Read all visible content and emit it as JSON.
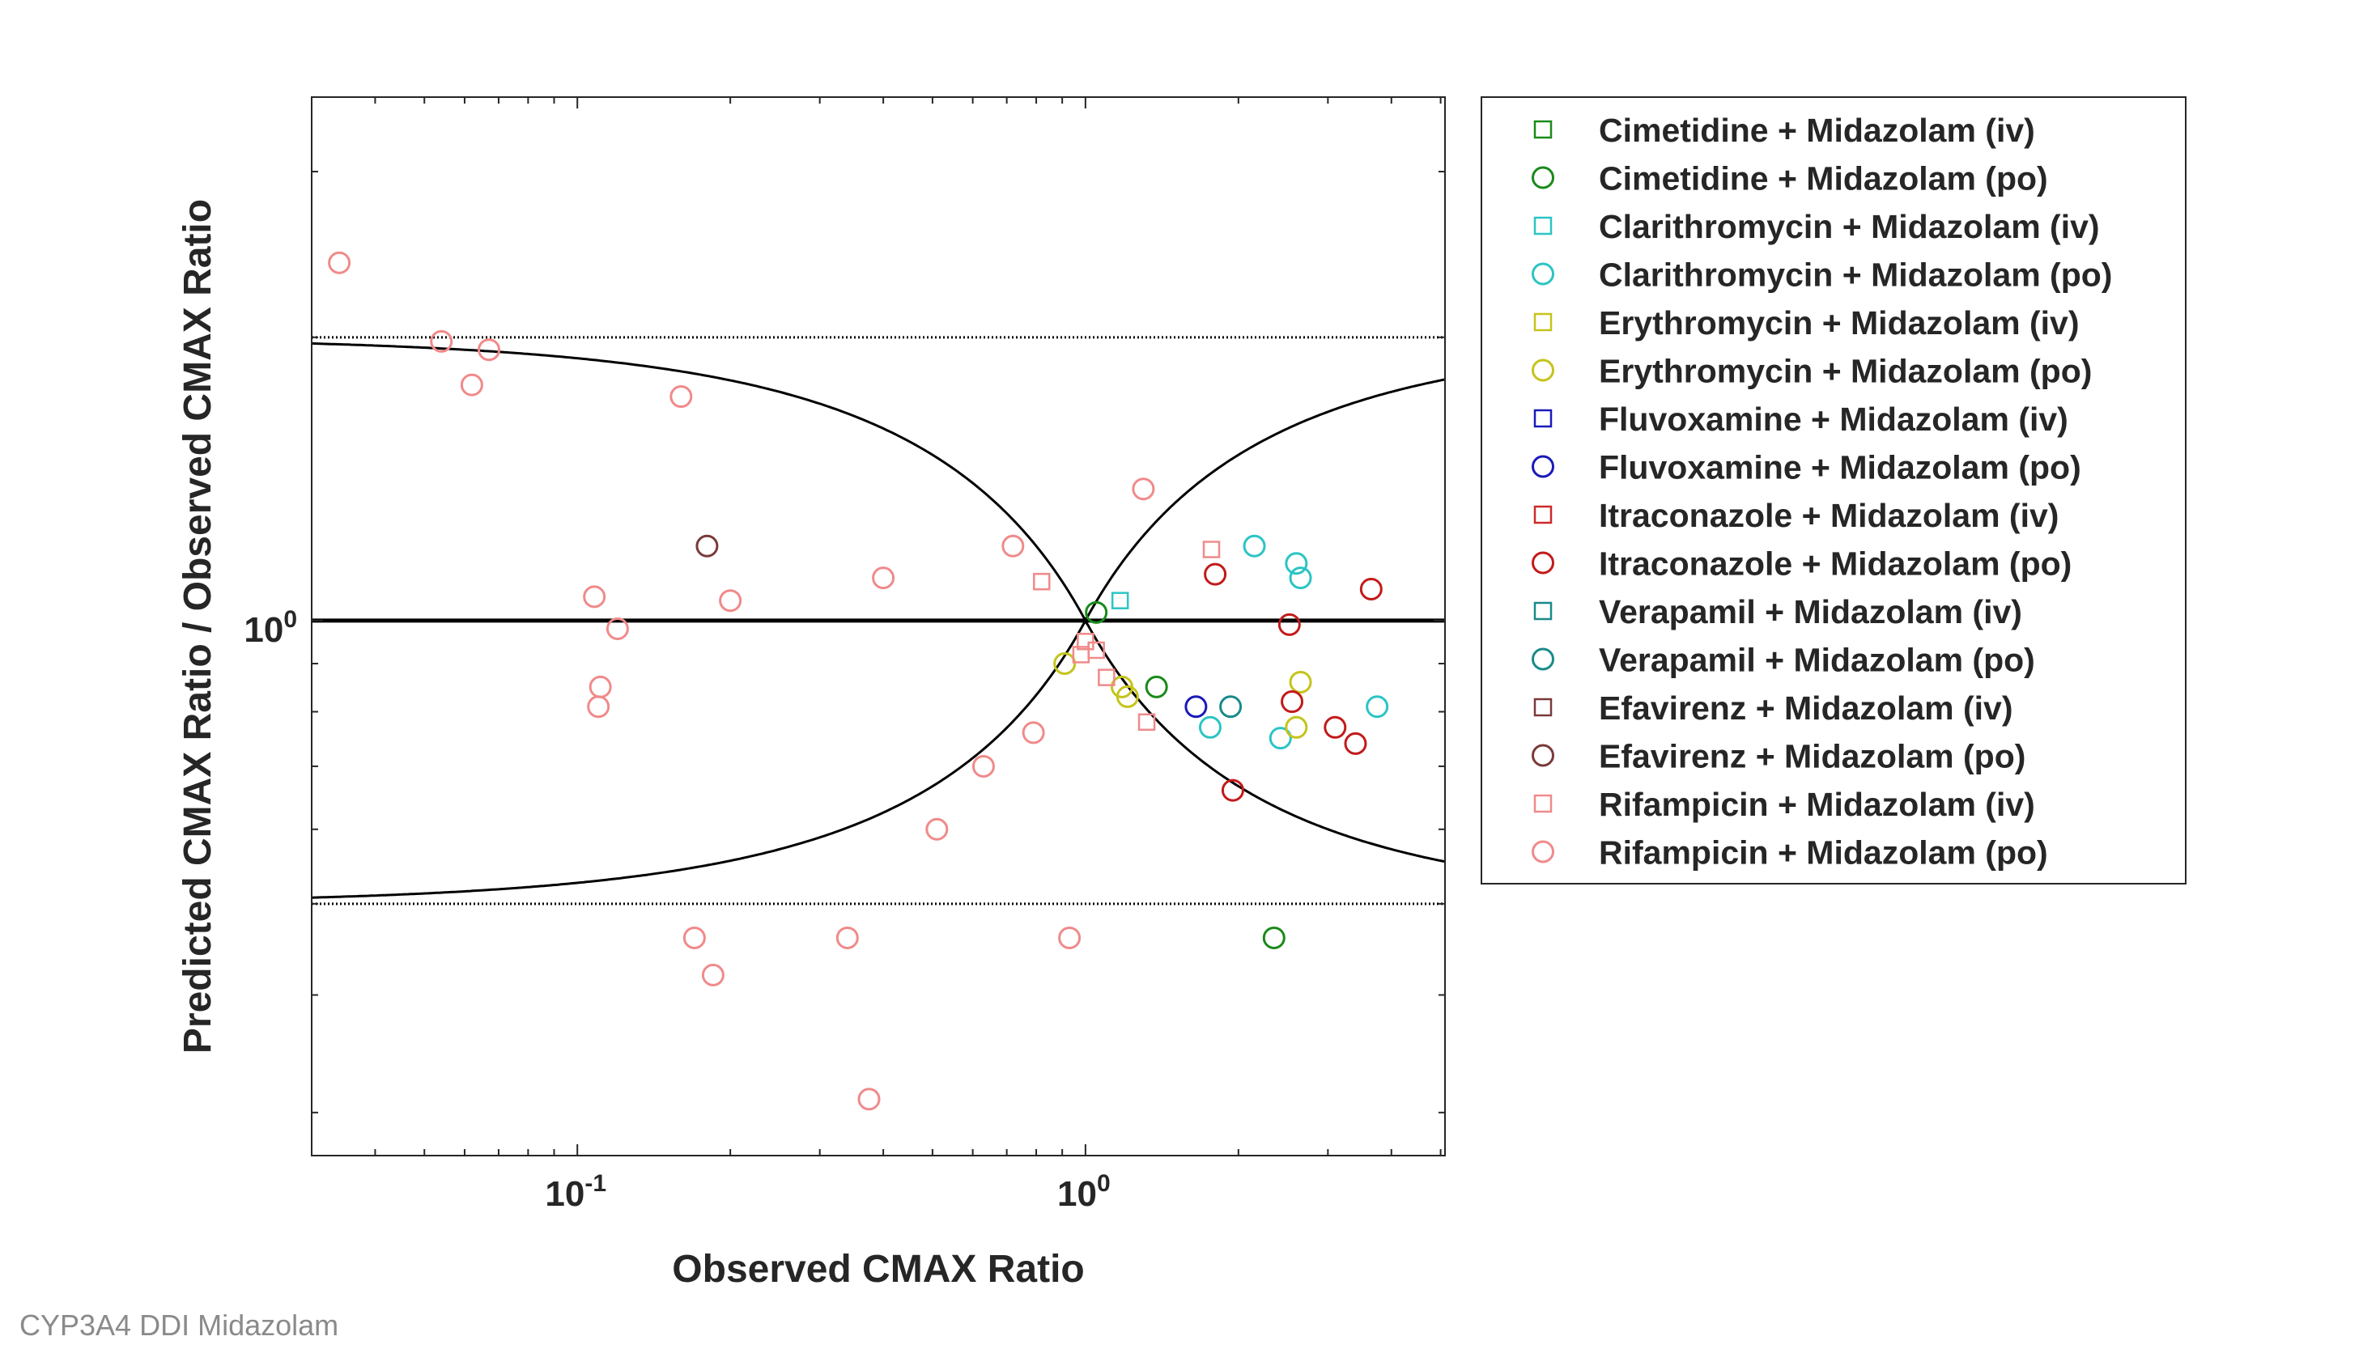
{
  "footer": {
    "caption": "CYP3A4 DDI Midazolam"
  },
  "chart_data": {
    "type": "scatter",
    "title": "",
    "xlabel": "Observed CMAX Ratio",
    "ylabel": "Predicted CMAX Ratio / Observed CMAX Ratio",
    "xscale": "log",
    "yscale": "log",
    "xlim": [
      0.03,
      5.1
    ],
    "ylim": [
      0.27,
      3.6
    ],
    "x_ticks": [
      {
        "value": 0.1,
        "base": "10",
        "exp": "-1"
      },
      {
        "value": 1,
        "base": "10",
        "exp": "0"
      }
    ],
    "y_ticks": [
      {
        "value": 1,
        "base": "10",
        "exp": "0"
      }
    ],
    "grid": false,
    "legend_position": "outside-right",
    "reference_lines": {
      "unity": 1,
      "dotted_limits": [
        0.5,
        2
      ],
      "guest_limit_curves": true
    },
    "series": [
      {
        "name": "Cimetidine + Midazolam (iv)",
        "marker": "square",
        "color": "#1a8a1a",
        "points": []
      },
      {
        "name": "Cimetidine + Midazolam (po)",
        "marker": "circle",
        "color": "#1a8a1a",
        "points": [
          [
            1.05,
            1.02
          ],
          [
            1.38,
            0.85
          ],
          [
            2.35,
            0.46
          ]
        ]
      },
      {
        "name": "Clarithromycin + Midazolam (iv)",
        "marker": "square",
        "color": "#2cc4c4",
        "points": [
          [
            1.17,
            1.05
          ]
        ]
      },
      {
        "name": "Clarithromycin + Midazolam (po)",
        "marker": "circle",
        "color": "#2cc4c4",
        "points": [
          [
            2.15,
            1.2
          ],
          [
            2.6,
            1.15
          ],
          [
            2.65,
            1.11
          ],
          [
            1.76,
            0.77
          ],
          [
            2.42,
            0.75
          ],
          [
            3.75,
            0.81
          ]
        ]
      },
      {
        "name": "Erythromycin + Midazolam (iv)",
        "marker": "square",
        "color": "#c4c41c",
        "points": []
      },
      {
        "name": "Erythromycin + Midazolam (po)",
        "marker": "circle",
        "color": "#c4c41c",
        "points": [
          [
            0.91,
            0.9
          ],
          [
            1.18,
            0.85
          ],
          [
            1.21,
            0.83
          ],
          [
            2.65,
            0.86
          ],
          [
            2.6,
            0.77
          ]
        ]
      },
      {
        "name": "Fluvoxamine + Midazolam (iv)",
        "marker": "square",
        "color": "#1a1ab8",
        "points": []
      },
      {
        "name": "Fluvoxamine + Midazolam (po)",
        "marker": "circle",
        "color": "#1a1ab8",
        "points": [
          [
            1.65,
            0.81
          ]
        ]
      },
      {
        "name": "Itraconazole + Midazolam (iv)",
        "marker": "square",
        "color": "#cc2a2a",
        "points": []
      },
      {
        "name": "Itraconazole + Midazolam (po)",
        "marker": "circle",
        "color": "#c21a1a",
        "points": [
          [
            1.8,
            1.12
          ],
          [
            3.65,
            1.08
          ],
          [
            2.52,
            0.99
          ],
          [
            2.55,
            0.82
          ],
          [
            3.1,
            0.77
          ],
          [
            3.4,
            0.74
          ],
          [
            1.95,
            0.66
          ]
        ]
      },
      {
        "name": "Verapamil + Midazolam (iv)",
        "marker": "square",
        "color": "#1a8a8a",
        "points": []
      },
      {
        "name": "Verapamil + Midazolam (po)",
        "marker": "circle",
        "color": "#1a8a8a",
        "points": [
          [
            1.93,
            0.81
          ]
        ]
      },
      {
        "name": "Efavirenz + Midazolam (iv)",
        "marker": "square",
        "color": "#7a3a3a",
        "points": []
      },
      {
        "name": "Efavirenz + Midazolam (po)",
        "marker": "circle",
        "color": "#7a3a3a",
        "points": [
          [
            0.18,
            1.2
          ]
        ]
      },
      {
        "name": "Rifampicin + Midazolam (iv)",
        "marker": "square",
        "color": "#f08a8a",
        "points": [
          [
            1.77,
            1.19
          ],
          [
            0.82,
            1.1
          ],
          [
            1.0,
            0.95
          ],
          [
            1.05,
            0.93
          ],
          [
            0.98,
            0.92
          ],
          [
            1.1,
            0.87
          ],
          [
            1.32,
            0.78
          ]
        ]
      },
      {
        "name": "Rifampicin + Midazolam (po)",
        "marker": "circle",
        "color": "#f08a8a",
        "points": [
          [
            0.034,
            2.4
          ],
          [
            0.054,
            1.98
          ],
          [
            0.067,
            1.94
          ],
          [
            0.062,
            1.78
          ],
          [
            0.16,
            1.73
          ],
          [
            1.3,
            1.38
          ],
          [
            0.72,
            1.2
          ],
          [
            0.4,
            1.11
          ],
          [
            0.108,
            1.06
          ],
          [
            0.2,
            1.05
          ],
          [
            0.12,
            0.98
          ],
          [
            0.111,
            0.85
          ],
          [
            0.11,
            0.81
          ],
          [
            0.79,
            0.76
          ],
          [
            0.63,
            0.7
          ],
          [
            0.51,
            0.6
          ],
          [
            0.17,
            0.46
          ],
          [
            0.34,
            0.46
          ],
          [
            0.93,
            0.46
          ],
          [
            0.185,
            0.42
          ],
          [
            0.375,
            0.31
          ]
        ]
      }
    ]
  }
}
